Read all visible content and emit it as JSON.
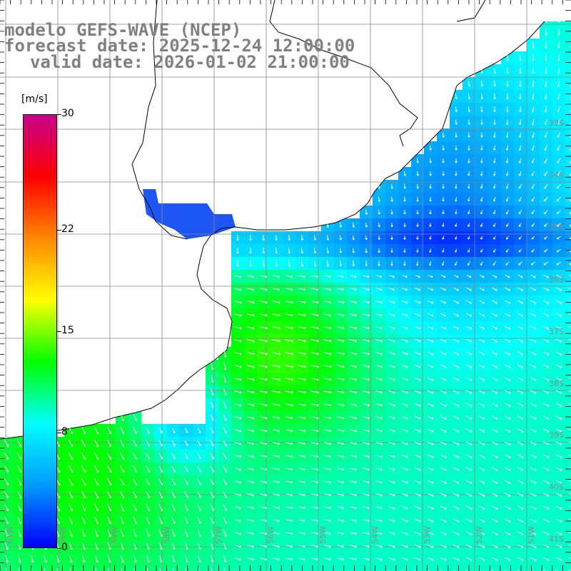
{
  "title": {
    "line1": "modelo GEFS-WAVE (NCEP)",
    "line2": "forecast date: 2025-12-24 12:00:00",
    "line3": "valid date: 2026-01-02 21:00:00"
  },
  "colorbar": {
    "unit": "[m/s]",
    "range": [
      0,
      30
    ],
    "ticks": [
      {
        "value": 30,
        "label": "30"
      },
      {
        "value": 22,
        "label": "22"
      },
      {
        "value": 15,
        "label": "15"
      },
      {
        "value": 8,
        "label": "8"
      },
      {
        "value": 0,
        "label": "0"
      }
    ],
    "stops": [
      "#0000ff",
      "#0099ff",
      "#00ffff",
      "#00ff00",
      "#ffff00",
      "#ff8800",
      "#ff0000",
      "#c8008c"
    ]
  },
  "grid": {
    "lat_labels": [
      "33S",
      "34S",
      "35S",
      "36S",
      "37S",
      "38S",
      "39S",
      "40S",
      "41S"
    ],
    "lon_labels": [
      "61W",
      "60W",
      "59W",
      "58W",
      "57W",
      "56W",
      "55W",
      "54W",
      "53W",
      "52W",
      "51W"
    ]
  },
  "colors": {
    "land": "#ffffff",
    "coast": "#000000",
    "grid": "#888888",
    "arrow": "#ffffff"
  }
}
